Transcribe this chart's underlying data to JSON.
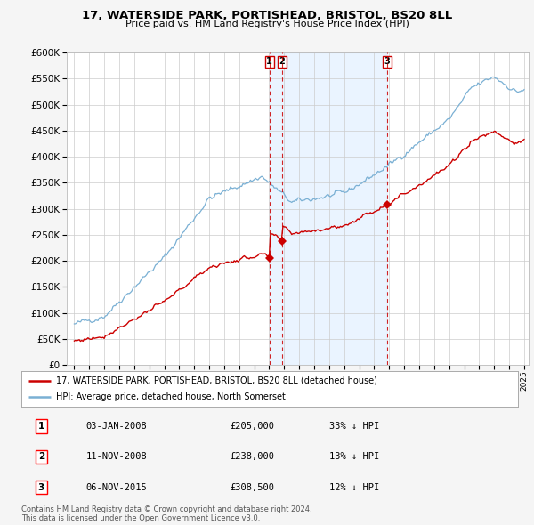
{
  "title": "17, WATERSIDE PARK, PORTISHEAD, BRISTOL, BS20 8LL",
  "subtitle": "Price paid vs. HM Land Registry's House Price Index (HPI)",
  "legend_property": "17, WATERSIDE PARK, PORTISHEAD, BRISTOL, BS20 8LL (detached house)",
  "legend_hpi": "HPI: Average price, detached house, North Somerset",
  "transactions": [
    {
      "num": 1,
      "date": "03-JAN-2008",
      "price": 205000,
      "hpi_rel": "33% ↓ HPI",
      "x": 2008.01
    },
    {
      "num": 2,
      "date": "11-NOV-2008",
      "price": 238000,
      "hpi_rel": "13% ↓ HPI",
      "x": 2008.86
    },
    {
      "num": 3,
      "date": "06-NOV-2015",
      "price": 308500,
      "hpi_rel": "12% ↓ HPI",
      "x": 2015.85
    }
  ],
  "footnote1": "Contains HM Land Registry data © Crown copyright and database right 2024.",
  "footnote2": "This data is licensed under the Open Government Licence v3.0.",
  "ylim": [
    0,
    600000
  ],
  "yticks": [
    0,
    50000,
    100000,
    150000,
    200000,
    250000,
    300000,
    350000,
    400000,
    450000,
    500000,
    550000,
    600000
  ],
  "property_color": "#cc0000",
  "hpi_color": "#7ab0d4",
  "vline_color": "#cc0000",
  "shade_color": "#ddeeff",
  "background_color": "#f5f5f5",
  "plot_bg_color": "#ffffff",
  "fig_width": 6.0,
  "fig_height": 5.9,
  "dpi": 100
}
